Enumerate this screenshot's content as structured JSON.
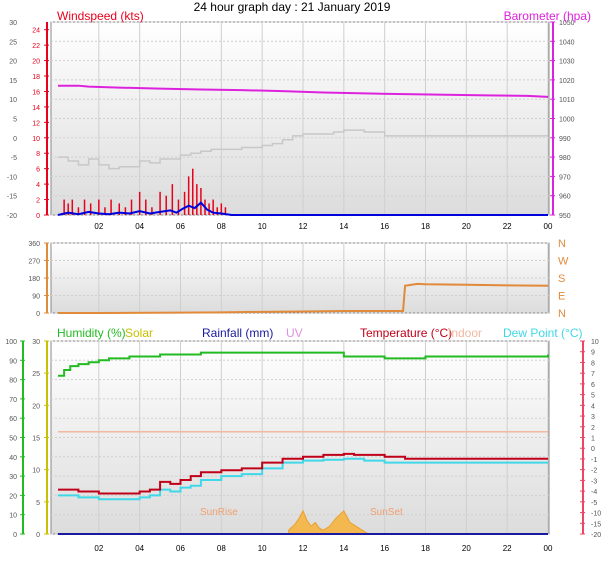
{
  "title": "24 hour graph day : 21 January 2019",
  "colors": {
    "windspeed": "#e8001c",
    "windavg": "#0000dd",
    "barometer": "#dd22dd",
    "temp_outside": "#c8c8c8",
    "wind_dir": "#e08a3a",
    "humidity": "#22bb22",
    "solar": "#c8c000",
    "rainfall": "#1a1aa0",
    "uv": "#e090e0",
    "temperature": "#c00018",
    "indoor": "#f2b8a0",
    "dewpoint": "#40d8e8",
    "solar_fill": "#f4b850"
  },
  "chart_data": [
    {
      "type": "line",
      "panel": "wind-baro",
      "title": "",
      "legend": [
        "Windspeed (kts)",
        "Barometer (hpa)"
      ],
      "x_ticks": [
        "02",
        "04",
        "06",
        "08",
        "10",
        "12",
        "14",
        "16",
        "18",
        "20",
        "22",
        "00"
      ],
      "xlim": [
        0,
        24
      ],
      "y_left_outer": {
        "ticks": [
          "30",
          "25",
          "20",
          "15",
          "10",
          "5",
          "0",
          "-5",
          "-10",
          "-15",
          "-20"
        ],
        "ylim": [
          -20,
          30
        ]
      },
      "y_left_inner": {
        "ticks": [
          "24",
          "22",
          "20",
          "18",
          "16",
          "14",
          "12",
          "10",
          "8",
          "6",
          "4",
          "2",
          "0"
        ],
        "ylim": [
          0,
          25
        ]
      },
      "y_right": {
        "ticks": [
          "1050",
          "1040",
          "1030",
          "1020",
          "1010",
          "1000",
          "990",
          "980",
          "970",
          "960",
          "950"
        ],
        "ylim": [
          950,
          1050
        ]
      },
      "series": [
        {
          "name": "Barometer (hpa)",
          "axis": "right",
          "x": [
            0,
            1,
            1.5,
            3,
            5,
            7,
            9,
            11,
            13,
            15,
            17,
            19,
            21,
            23,
            24
          ],
          "y": [
            1017,
            1017,
            1016.5,
            1016,
            1015.5,
            1015,
            1014.7,
            1014.2,
            1013.5,
            1013,
            1012.6,
            1012.3,
            1012,
            1011.7,
            1011.2
          ]
        },
        {
          "axis": "left_outer",
          "x": [
            0,
            0.5,
            1,
            1.5,
            2,
            2.5,
            3,
            3.5,
            4,
            4.5,
            5,
            5.5,
            6,
            6.5,
            7,
            7.5,
            8,
            9,
            10,
            10.5,
            11,
            11.5,
            12,
            12.5,
            13,
            13.5,
            14,
            15,
            16,
            18,
            20,
            22,
            24
          ],
          "y": [
            -5,
            -6,
            -7,
            -5.5,
            -7,
            -8,
            -7.5,
            -7.5,
            -6,
            -6.5,
            -5.5,
            -5.5,
            -4.5,
            -4,
            -3.5,
            -3,
            -3,
            -2.5,
            -2,
            -1.5,
            -0.5,
            0.5,
            1,
            1,
            1,
            1.5,
            2,
            1.5,
            0.5,
            0.5,
            0.5,
            0.5,
            0.5
          ]
        },
        {
          "name": "Windspeed (kts)",
          "axis": "left_inner",
          "x": [
            0.3,
            0.5,
            0.7,
            1.0,
            1.3,
            1.6,
            2.0,
            2.3,
            2.6,
            3.0,
            3.3,
            3.6,
            4.0,
            4.3,
            4.6,
            5.0,
            5.3,
            5.6,
            5.9,
            6.2,
            6.4,
            6.6,
            6.8,
            7.0,
            7.2,
            7.4,
            7.6,
            7.8,
            8.0,
            8.2
          ],
          "y": [
            2,
            1.5,
            2,
            1,
            2,
            1.5,
            2,
            1,
            2,
            1.5,
            1,
            2,
            3,
            2,
            1,
            3,
            2.5,
            4,
            2,
            3,
            5,
            6,
            4,
            3.5,
            2,
            1.5,
            2,
            1,
            1.5,
            1
          ]
        },
        {
          "axis": "left_inner",
          "x": [
            0,
            0.5,
            1,
            1.5,
            2,
            2.5,
            3,
            3.5,
            4,
            4.5,
            5,
            5.5,
            5.8,
            6.1,
            6.4,
            6.7,
            7,
            7.3,
            7.6,
            8,
            8.5,
            24
          ],
          "y": [
            0,
            0.3,
            0.1,
            0.4,
            0.2,
            0.1,
            0.3,
            0.2,
            0.5,
            0.2,
            0.4,
            0.6,
            0.3,
            0.8,
            1.2,
            0.9,
            1.6,
            0.7,
            0.3,
            0.2,
            0,
            0
          ]
        }
      ]
    },
    {
      "type": "line",
      "panel": "wind-direction",
      "title": "",
      "legend": [],
      "x_ticks": [],
      "xlim": [
        0,
        24
      ],
      "y_left": {
        "ticks": [
          "360",
          "270",
          "180",
          "90",
          "0"
        ],
        "ylim": [
          0,
          360
        ]
      },
      "y_right": {
        "ticks": [
          "N",
          "W",
          "S",
          "E",
          "N"
        ]
      },
      "series": [
        {
          "axis": "left",
          "x": [
            0,
            2,
            6,
            8,
            10,
            12,
            14,
            15,
            16,
            16.9,
            17.0,
            17.6,
            18,
            20,
            22,
            24
          ],
          "y": [
            0,
            0,
            2,
            3,
            6,
            8,
            10,
            10,
            10,
            10,
            140,
            150,
            148,
            145,
            142,
            140
          ]
        }
      ]
    },
    {
      "type": "line",
      "panel": "temp-humidity",
      "title": "",
      "legend": [
        "Humidity (%)",
        "Solar",
        "Rainfall (mm)",
        "UV",
        "Temperature (°C)",
        "Indoor",
        "Dew Point (°C)"
      ],
      "x_ticks": [
        "02",
        "04",
        "06",
        "08",
        "10",
        "12",
        "14",
        "16",
        "18",
        "20",
        "22",
        "00"
      ],
      "xlim": [
        0,
        24
      ],
      "annotations": [
        "SunRise",
        "SunSet"
      ],
      "y_left_outer": {
        "ticks": [
          "100",
          "90",
          "80",
          "70",
          "60",
          "50",
          "40",
          "30",
          "20",
          "10",
          "0"
        ],
        "ylim": [
          0,
          100
        ]
      },
      "y_left_inner": {
        "ticks": [
          "30",
          "25",
          "20",
          "15",
          "10",
          "5",
          "0"
        ],
        "ylim": [
          0,
          30
        ]
      },
      "y_right": {
        "ticks": [
          "10",
          "9",
          "8",
          "7",
          "6",
          "5",
          "4",
          "3",
          "2",
          "1",
          "0",
          "-1",
          "-2",
          "-3",
          "-4",
          "-5",
          "-10",
          "-15",
          "-20"
        ]
      },
      "series": [
        {
          "name": "Humidity (%)",
          "axis": "left_outer",
          "x": [
            0,
            0.3,
            0.6,
            1,
            1.5,
            2,
            2.5,
            3,
            3.5,
            4,
            5,
            6,
            7,
            8,
            9,
            10,
            11,
            12,
            13,
            13.5,
            14,
            15,
            16,
            17,
            18,
            19,
            20,
            21,
            22,
            23,
            24
          ],
          "y": [
            82,
            85,
            87,
            88,
            89,
            90,
            91,
            91,
            92,
            92,
            93,
            93,
            94,
            94,
            94,
            94,
            94,
            94,
            94,
            94,
            92,
            92,
            91,
            91,
            92,
            92,
            92,
            92,
            92,
            92,
            93
          ]
        },
        {
          "name": "Indoor",
          "axis": "left_outer",
          "x": [
            0,
            24
          ],
          "y": [
            53,
            53
          ]
        },
        {
          "name": "Temperature (°C)",
          "axis": "left_outer",
          "x": [
            0,
            1,
            2,
            3,
            4,
            4.5,
            5,
            5.5,
            6,
            6.5,
            7,
            8,
            9,
            10,
            11,
            12,
            13,
            14,
            14.5,
            15,
            16,
            17,
            18,
            19,
            20,
            21,
            22,
            23,
            24
          ],
          "y": [
            23,
            22,
            21,
            21,
            22,
            23,
            27,
            26,
            28,
            30,
            32,
            33,
            34,
            37,
            39,
            40,
            41,
            41.5,
            41,
            41,
            40,
            39,
            39,
            39,
            39,
            39,
            39,
            39,
            39
          ]
        },
        {
          "name": "Dew Point (°C)",
          "axis": "left_outer",
          "x": [
            0,
            1,
            2,
            3,
            4,
            4.5,
            5,
            5.5,
            6,
            6.5,
            7,
            8,
            9,
            10,
            11,
            12,
            13,
            14,
            14.5,
            15,
            16,
            17,
            18,
            19,
            20,
            21,
            22,
            23,
            24
          ],
          "y": [
            20,
            19,
            18,
            18,
            19,
            20,
            23,
            22,
            24,
            25,
            28,
            30,
            31,
            34,
            37,
            38,
            38.5,
            39,
            39,
            38,
            37,
            37,
            37,
            37,
            37,
            37,
            37,
            37,
            37
          ]
        },
        {
          "name": "Solar",
          "axis": "left_outer",
          "fill": true,
          "x": [
            11.3,
            11.6,
            11.8,
            12.0,
            12.2,
            12.4,
            12.6,
            12.8,
            13.0,
            13.3,
            13.6,
            14.0,
            14.3,
            14.6,
            14.9,
            15.2
          ],
          "y": [
            2,
            5,
            8,
            12,
            7,
            4,
            6,
            3,
            2,
            4,
            8,
            12,
            6,
            4,
            2,
            0
          ]
        },
        {
          "name": "Rainfall (mm)",
          "axis": "left_outer",
          "x": [
            0,
            24
          ],
          "y": [
            0,
            0
          ]
        }
      ]
    }
  ]
}
